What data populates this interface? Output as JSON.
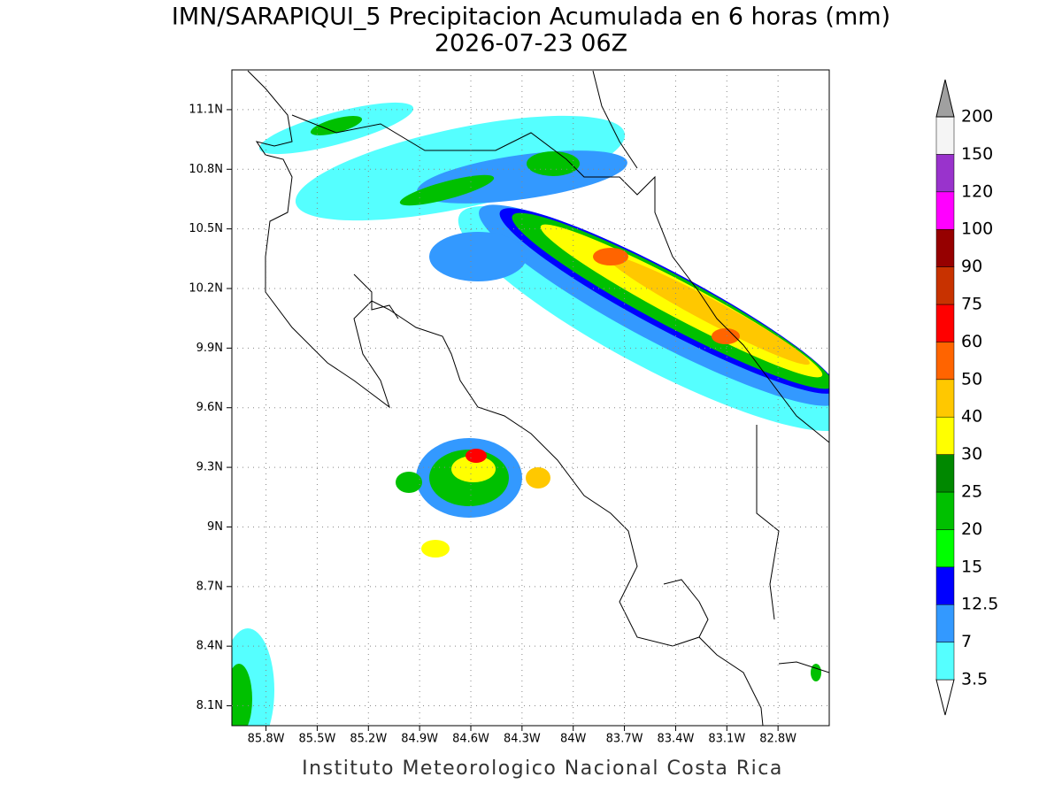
{
  "title": "IMN/SARAPIQUI_5 Precipitacion Acumulada en 6 horas (mm)",
  "subtitle": "2026-07-23 06Z",
  "footer": "Instituto Meteorologico Nacional Costa Rica",
  "map": {
    "xlim": [
      -86.0,
      -82.5
    ],
    "ylim": [
      8.0,
      11.3
    ],
    "grid": true,
    "xticks": [
      {
        "value": -85.8,
        "label": "85.8W"
      },
      {
        "value": -85.5,
        "label": "85.5W"
      },
      {
        "value": -85.2,
        "label": "85.2W"
      },
      {
        "value": -84.9,
        "label": "84.9W"
      },
      {
        "value": -84.6,
        "label": "84.6W"
      },
      {
        "value": -84.3,
        "label": "84.3W"
      },
      {
        "value": -84.0,
        "label": "84W"
      },
      {
        "value": -83.7,
        "label": "83.7W"
      },
      {
        "value": -83.4,
        "label": "83.4W"
      },
      {
        "value": -83.1,
        "label": "83.1W"
      },
      {
        "value": -82.8,
        "label": "82.8W"
      }
    ],
    "yticks": [
      {
        "value": 11.1,
        "label": "11.1N"
      },
      {
        "value": 10.8,
        "label": "10.8N"
      },
      {
        "value": 10.5,
        "label": "10.5N"
      },
      {
        "value": 10.2,
        "label": "10.2N"
      },
      {
        "value": 9.9,
        "label": "9.9N"
      },
      {
        "value": 9.6,
        "label": "9.6N"
      },
      {
        "value": 9.3,
        "label": "9.3N"
      },
      {
        "value": 9.0,
        "label": "9N"
      },
      {
        "value": 8.7,
        "label": "8.7N"
      },
      {
        "value": 8.4,
        "label": "8.4N"
      },
      {
        "value": 8.1,
        "label": "8.1N"
      }
    ]
  },
  "colorbar": {
    "levels": [
      "3.5",
      "7",
      "12.5",
      "15",
      "20",
      "25",
      "30",
      "40",
      "50",
      "60",
      "75",
      "90",
      "100",
      "120",
      "150",
      "200"
    ],
    "colors": [
      "#ffffff",
      "#55ffff",
      "#3399ff",
      "#0000ff",
      "#00ff00",
      "#00c000",
      "#008800",
      "#ffff00",
      "#ffc800",
      "#ff6400",
      "#ff0000",
      "#c83200",
      "#960000",
      "#ff00ff",
      "#9933cc",
      "#f5f5f5",
      "#a0a0a0"
    ]
  }
}
